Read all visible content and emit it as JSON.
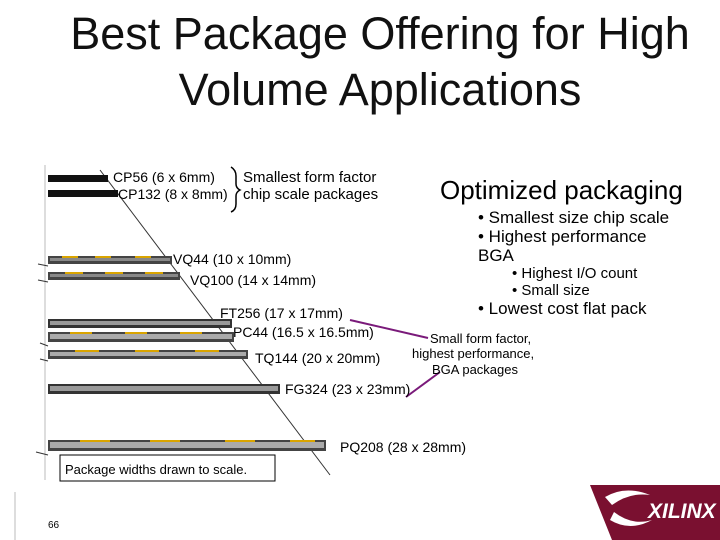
{
  "slide": {
    "title_line1": "Best Package Offering for High",
    "title_line2": "Volume Applications",
    "page_number": "66"
  },
  "labels": {
    "cp56": "CP56 (6 x 6mm)",
    "cp132": "CP132 (8 x 8mm)",
    "csp_line1": "Smallest form factor",
    "csp_line2": "chip scale packages",
    "vq44": "VQ44 (10 x 10mm)",
    "vq100": "VQ100 (14 x 14mm)",
    "ft256": "FT256 (17 x 17mm)",
    "pc44": "PC44 (16.5 x 16.5mm)",
    "tq144": "TQ144 (20 x 20mm)",
    "fg324": "FG324 (23 x 23mm)",
    "pq208": "PQ208 (28 x 28mm)",
    "footnote": "Package widths drawn to scale."
  },
  "optimized": {
    "heading": "Optimized packaging",
    "bullet1": "• Smallest size chip scale",
    "bullet2_line1": "• Highest performance",
    "bullet2_line2": "BGA",
    "sub1": "• Highest I/O count",
    "sub2": "• Small size",
    "bullet3": "• Lowest cost flat pack"
  },
  "callout": {
    "line1": "Small form factor,",
    "line2": "highest performance,",
    "line3": "BGA packages"
  },
  "logo": {
    "text": "XILINX",
    "color": "#7a1030"
  },
  "colors": {
    "lead": "#d9a400",
    "callout_line": "#7a1a7a"
  }
}
